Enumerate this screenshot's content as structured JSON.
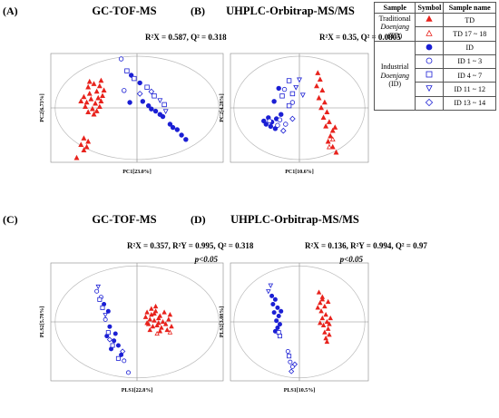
{
  "colors": {
    "red": "#e8231d",
    "blue": "#1b1fd4",
    "axis": "#888888",
    "circle": "#bbbbbb"
  },
  "legend": {
    "headers": [
      "Sample",
      "Symbol",
      "Sample name"
    ],
    "traditional": {
      "label_line1": "Traditional",
      "label_line2": "Doenjang",
      "label_line3": "(TD)"
    },
    "industrial": {
      "label_line1": "Industrial",
      "label_line2": "Doenjang",
      "label_line3": "(ID)"
    },
    "rows": [
      {
        "group": "traditional",
        "symbol": "triangle-filled",
        "color": "red",
        "name": "TD"
      },
      {
        "group": "traditional",
        "symbol": "triangle-open",
        "color": "red",
        "name": "TD 17 ~ 18"
      },
      {
        "group": "industrial",
        "symbol": "circle-filled",
        "color": "blue",
        "name": "ID"
      },
      {
        "group": "industrial",
        "symbol": "circle-open",
        "color": "blue",
        "name": "ID 1 ~ 3"
      },
      {
        "group": "industrial",
        "symbol": "square-open",
        "color": "blue",
        "name": "ID 4 ~ 7"
      },
      {
        "group": "industrial",
        "symbol": "triangle-down-open",
        "color": "blue",
        "name": "ID 11 ~ 12"
      },
      {
        "group": "industrial",
        "symbol": "diamond-open",
        "color": "blue",
        "name": "ID 13 ~ 14"
      }
    ]
  },
  "chart_data": [
    {
      "type": "scatter",
      "panel": "(A)",
      "title": "GC-TOF-MS",
      "stats": "R²X = 0.587, Q² = 0.318",
      "significance": "",
      "xlabel": "PC1[23.0%]",
      "ylabel": "PC2[6.73%]",
      "xlim": [
        -6,
        6
      ],
      "ylim": [
        -5,
        5
      ],
      "series": [
        {
          "symbol": "triangle-filled",
          "color": "red",
          "points": [
            [
              -3.4,
              1.9
            ],
            [
              -3.0,
              2.2
            ],
            [
              -2.6,
              2.0
            ],
            [
              -3.3,
              1.3
            ],
            [
              -2.8,
              1.5
            ],
            [
              -3.2,
              0.8
            ],
            [
              -2.7,
              0.9
            ],
            [
              -3.5,
              0.5
            ],
            [
              -2.9,
              0.4
            ],
            [
              -2.5,
              0.6
            ],
            [
              -3.6,
              0.1
            ],
            [
              -3.1,
              -0.1
            ],
            [
              -2.6,
              0.1
            ],
            [
              -3.4,
              -0.4
            ],
            [
              -2.8,
              -0.3
            ],
            [
              -2.4,
              1.1
            ],
            [
              -3.7,
              1.0
            ],
            [
              -3.3,
              2.4
            ],
            [
              -2.5,
              2.5
            ],
            [
              -3.9,
              0.6
            ],
            [
              -2.3,
              1.6
            ],
            [
              -3.0,
              -0.6
            ],
            [
              -3.7,
              -2.8
            ],
            [
              -3.4,
              -3.1
            ],
            [
              -3.9,
              -3.4
            ],
            [
              -3.5,
              -3.6
            ],
            [
              -3.7,
              -3.9
            ],
            [
              -4.2,
              -4.6
            ]
          ]
        },
        {
          "symbol": "triangle-open",
          "color": "red",
          "points": []
        },
        {
          "symbol": "circle-filled",
          "color": "blue",
          "points": [
            [
              -0.4,
              3.0
            ],
            [
              0.2,
              2.3
            ],
            [
              -0.5,
              0.5
            ],
            [
              0.4,
              0.6
            ],
            [
              0.8,
              0.2
            ],
            [
              1.3,
              -0.3
            ],
            [
              1.8,
              -0.8
            ],
            [
              1.0,
              -0.1
            ],
            [
              2.3,
              -1.5
            ],
            [
              2.8,
              -2.0
            ],
            [
              3.1,
              -2.5
            ],
            [
              3.4,
              -2.9
            ],
            [
              1.6,
              -0.6
            ],
            [
              2.5,
              -1.8
            ]
          ]
        },
        {
          "symbol": "circle-open",
          "color": "blue",
          "points": [
            [
              -1.1,
              4.5
            ],
            [
              -0.9,
              1.6
            ]
          ]
        },
        {
          "symbol": "square-open",
          "color": "blue",
          "points": [
            [
              -0.7,
              3.4
            ],
            [
              -0.2,
              2.7
            ],
            [
              0.7,
              1.9
            ],
            [
              1.2,
              1.1
            ],
            [
              1.9,
              0.3
            ]
          ]
        },
        {
          "symbol": "triangle-down-open",
          "color": "blue",
          "points": [
            [
              1.6,
              0.7
            ],
            [
              2.0,
              -0.3
            ]
          ]
        },
        {
          "symbol": "diamond-open",
          "color": "blue",
          "points": [
            [
              0.2,
              1.3
            ],
            [
              1.0,
              1.5
            ]
          ]
        }
      ]
    },
    {
      "type": "scatter",
      "panel": "(B)",
      "title": "UHPLC-Orbitrap-MS/MS",
      "stats": "R²X = 0.35, Q² = 0.0805",
      "significance": "",
      "xlabel": "PC1[10.6%]",
      "ylabel": "PC2[4.28%]",
      "xlim": [
        -6,
        6
      ],
      "ylim": [
        -5,
        5
      ],
      "series": [
        {
          "symbol": "triangle-filled",
          "color": "red",
          "points": [
            [
              1.6,
              3.2
            ],
            [
              1.8,
              2.6
            ],
            [
              1.5,
              2.0
            ],
            [
              2.0,
              1.6
            ],
            [
              1.7,
              0.9
            ],
            [
              2.2,
              0.5
            ],
            [
              1.9,
              0.0
            ],
            [
              2.4,
              -0.4
            ],
            [
              2.1,
              -0.9
            ],
            [
              2.6,
              -1.3
            ],
            [
              2.3,
              -1.7
            ],
            [
              2.9,
              -2.1
            ],
            [
              2.7,
              -2.6
            ],
            [
              3.1,
              -1.8
            ],
            [
              2.5,
              -3.1
            ],
            [
              2.9,
              -3.6
            ],
            [
              3.2,
              -4.1
            ]
          ]
        },
        {
          "symbol": "triangle-open",
          "color": "red",
          "points": [
            [
              2.9,
              -2.9
            ],
            [
              2.6,
              -3.6
            ]
          ]
        },
        {
          "symbol": "circle-filled",
          "color": "blue",
          "points": [
            [
              -1.8,
              1.8
            ],
            [
              -2.2,
              0.6
            ],
            [
              -2.7,
              -0.9
            ],
            [
              -2.4,
              -1.3
            ],
            [
              -2.0,
              -1.0
            ],
            [
              -2.9,
              -1.5
            ],
            [
              -2.5,
              -1.7
            ],
            [
              -1.6,
              -0.6
            ],
            [
              -2.1,
              -1.9
            ],
            [
              -3.1,
              -1.2
            ]
          ]
        },
        {
          "symbol": "circle-open",
          "color": "blue",
          "points": [
            [
              -1.3,
              1.7
            ],
            [
              -0.6,
              0.5
            ],
            [
              -1.7,
              -1.1
            ],
            [
              -1.2,
              -1.5
            ],
            [
              -1.9,
              -1.6
            ],
            [
              -2.6,
              -1.2
            ]
          ]
        },
        {
          "symbol": "square-open",
          "color": "blue",
          "points": [
            [
              -0.9,
              2.5
            ],
            [
              -0.6,
              1.3
            ],
            [
              -0.9,
              0.2
            ],
            [
              -1.5,
              1.1
            ]
          ]
        },
        {
          "symbol": "triangle-down-open",
          "color": "blue",
          "points": [
            [
              0.0,
              2.6
            ],
            [
              -0.3,
              1.9
            ],
            [
              0.3,
              1.2
            ]
          ]
        },
        {
          "symbol": "diamond-open",
          "color": "blue",
          "points": [
            [
              -1.4,
              -2.1
            ],
            [
              -0.6,
              -1.0
            ]
          ]
        }
      ]
    },
    {
      "type": "scatter",
      "panel": "(C)",
      "title": "GC-TOF-MS",
      "stats": "R²X = 0.357, R²Y = 0.995, Q² = 0.318",
      "significance": "p<0.05",
      "xlabel": "PLS1[22.8%]",
      "ylabel": "PLS2[5.78%]",
      "xlim": [
        -6,
        6
      ],
      "ylim": [
        -5,
        5
      ],
      "series": [
        {
          "symbol": "triangle-filled",
          "color": "red",
          "points": [
            [
              0.7,
              0.8
            ],
            [
              1.0,
              0.6
            ],
            [
              1.3,
              0.9
            ],
            [
              1.6,
              0.5
            ],
            [
              0.9,
              0.2
            ],
            [
              1.2,
              0.1
            ],
            [
              1.5,
              0.3
            ],
            [
              1.8,
              0.0
            ],
            [
              0.8,
              -0.2
            ],
            [
              1.1,
              -0.4
            ],
            [
              1.4,
              -0.3
            ],
            [
              1.7,
              -0.5
            ],
            [
              2.0,
              -0.2
            ],
            [
              0.6,
              0.4
            ],
            [
              2.2,
              0.2
            ],
            [
              1.3,
              1.3
            ],
            [
              1.9,
              0.8
            ],
            [
              0.9,
              -0.7
            ],
            [
              1.6,
              -0.8
            ],
            [
              2.1,
              -0.7
            ],
            [
              2.4,
              -0.4
            ],
            [
              1.2,
              0.7
            ],
            [
              1.5,
              -0.1
            ],
            [
              0.7,
              -0.1
            ],
            [
              1.0,
              1.1
            ],
            [
              2.3,
              0.6
            ]
          ]
        },
        {
          "symbol": "triangle-open",
          "color": "red",
          "points": [
            [
              2.3,
              -0.9
            ],
            [
              1.4,
              -1.0
            ]
          ]
        },
        {
          "symbol": "circle-filled",
          "color": "blue",
          "points": [
            [
              -2.3,
              1.5
            ],
            [
              -2.0,
              0.9
            ],
            [
              -1.9,
              -0.4
            ],
            [
              -2.1,
              -1.2
            ],
            [
              -1.6,
              -1.6
            ],
            [
              -1.3,
              -2.0
            ],
            [
              -1.8,
              -2.3
            ],
            [
              -1.1,
              -2.8
            ],
            [
              -1.5,
              -1.0
            ]
          ]
        },
        {
          "symbol": "circle-open",
          "color": "blue",
          "points": [
            [
              -2.8,
              2.6
            ],
            [
              -2.5,
              2.1
            ],
            [
              -2.2,
              0.2
            ],
            [
              -0.9,
              -3.3
            ],
            [
              -0.6,
              -4.3
            ]
          ]
        },
        {
          "symbol": "square-open",
          "color": "blue",
          "points": [
            [
              -2.6,
              1.9
            ],
            [
              -2.4,
              1.2
            ],
            [
              -2.0,
              -0.9
            ],
            [
              -1.7,
              -2.0
            ],
            [
              -1.3,
              -3.1
            ]
          ]
        },
        {
          "symbol": "triangle-down-open",
          "color": "blue",
          "points": [
            [
              -2.7,
              3.0
            ],
            [
              -2.2,
              0.6
            ]
          ]
        },
        {
          "symbol": "diamond-open",
          "color": "blue",
          "points": [
            [
              -1.9,
              -1.5
            ],
            [
              -1.0,
              -2.5
            ]
          ]
        }
      ]
    },
    {
      "type": "scatter",
      "panel": "(D)",
      "title": "UHPLC-Orbitrap-MS/MS",
      "stats": "R²X = 0.136, R²Y = 0.994, Q² = 0.97",
      "significance": "p<0.05",
      "xlabel": "PLS1[10.5%]",
      "ylabel": "PLS2[3.08%]",
      "xlim": [
        -6,
        6
      ],
      "ylim": [
        -5,
        5
      ],
      "series": [
        {
          "symbol": "triangle-filled",
          "color": "red",
          "points": [
            [
              1.7,
              2.5
            ],
            [
              2.0,
              2.1
            ],
            [
              1.8,
              1.6
            ],
            [
              2.2,
              1.3
            ],
            [
              1.9,
              0.9
            ],
            [
              2.3,
              0.6
            ],
            [
              2.0,
              0.3
            ],
            [
              2.4,
              0.0
            ],
            [
              2.1,
              -0.3
            ],
            [
              2.5,
              -0.6
            ],
            [
              2.2,
              -0.9
            ],
            [
              2.6,
              -1.1
            ],
            [
              2.3,
              -1.4
            ],
            [
              1.6,
              1.2
            ],
            [
              2.5,
              1.7
            ],
            [
              1.8,
              -0.1
            ],
            [
              2.7,
              0.3
            ],
            [
              2.4,
              -1.7
            ],
            [
              2.0,
              1.9
            ],
            [
              2.6,
              -0.2
            ]
          ]
        },
        {
          "symbol": "triangle-open",
          "color": "red",
          "points": []
        },
        {
          "symbol": "circle-filled",
          "color": "blue",
          "points": [
            [
              -2.1,
              1.9
            ],
            [
              -2.3,
              1.5
            ],
            [
              -1.9,
              1.2
            ],
            [
              -2.2,
              0.8
            ],
            [
              -1.8,
              0.5
            ],
            [
              -2.0,
              0.1
            ],
            [
              -1.7,
              -0.2
            ],
            [
              -1.9,
              -0.5
            ],
            [
              -2.4,
              2.2
            ],
            [
              -1.6,
              0.9
            ],
            [
              -2.1,
              -0.8
            ]
          ]
        },
        {
          "symbol": "circle-open",
          "color": "blue",
          "points": [
            [
              -0.8,
              -3.4
            ],
            [
              -0.6,
              -3.8
            ],
            [
              -1.0,
              -2.5
            ]
          ]
        },
        {
          "symbol": "square-open",
          "color": "blue",
          "points": [
            [
              -1.8,
              -0.9
            ],
            [
              -1.7,
              -1.2
            ],
            [
              -0.9,
              -2.9
            ]
          ]
        },
        {
          "symbol": "triangle-down-open",
          "color": "blue",
          "points": [
            [
              -2.5,
              3.1
            ],
            [
              -2.7,
              2.6
            ]
          ]
        },
        {
          "symbol": "diamond-open",
          "color": "blue",
          "points": [
            [
              -0.7,
              -4.2
            ],
            [
              -0.4,
              -3.6
            ]
          ]
        }
      ]
    }
  ]
}
